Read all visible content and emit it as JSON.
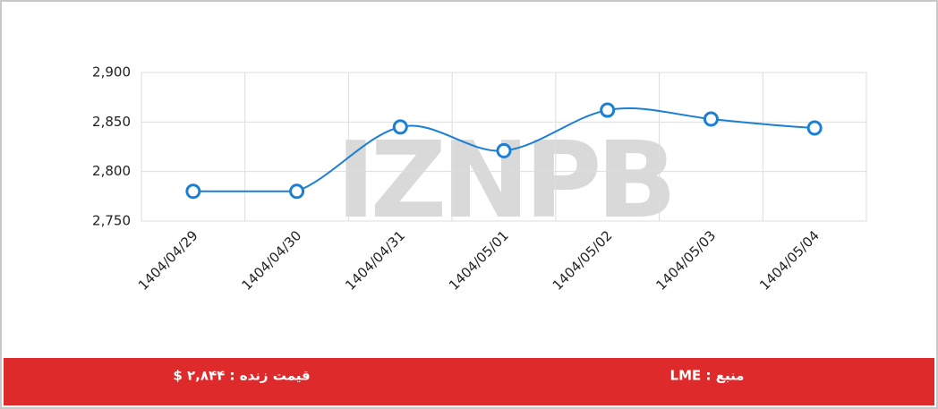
{
  "chart_data": {
    "type": "line",
    "categories": [
      "1404/04/29",
      "1404/04/30",
      "1404/04/31",
      "1404/05/01",
      "1404/05/02",
      "1404/05/03",
      "1404/05/04"
    ],
    "values": [
      2780,
      2780,
      2845,
      2821,
      2862,
      2853,
      2844
    ],
    "color": "#1b7fd6",
    "ylim": [
      2750,
      2900
    ],
    "yticks": [
      {
        "value": 2750,
        "label": "2,750"
      },
      {
        "value": 2800,
        "label": "2,800"
      },
      {
        "value": 2850,
        "label": "2,850"
      },
      {
        "value": 2900,
        "label": "2,900"
      }
    ],
    "grid": true,
    "watermark": "IZNPB"
  },
  "footer": {
    "price": "قیمت زنده : ۲,۸۴۴ $",
    "source": "منبع : LME"
  }
}
